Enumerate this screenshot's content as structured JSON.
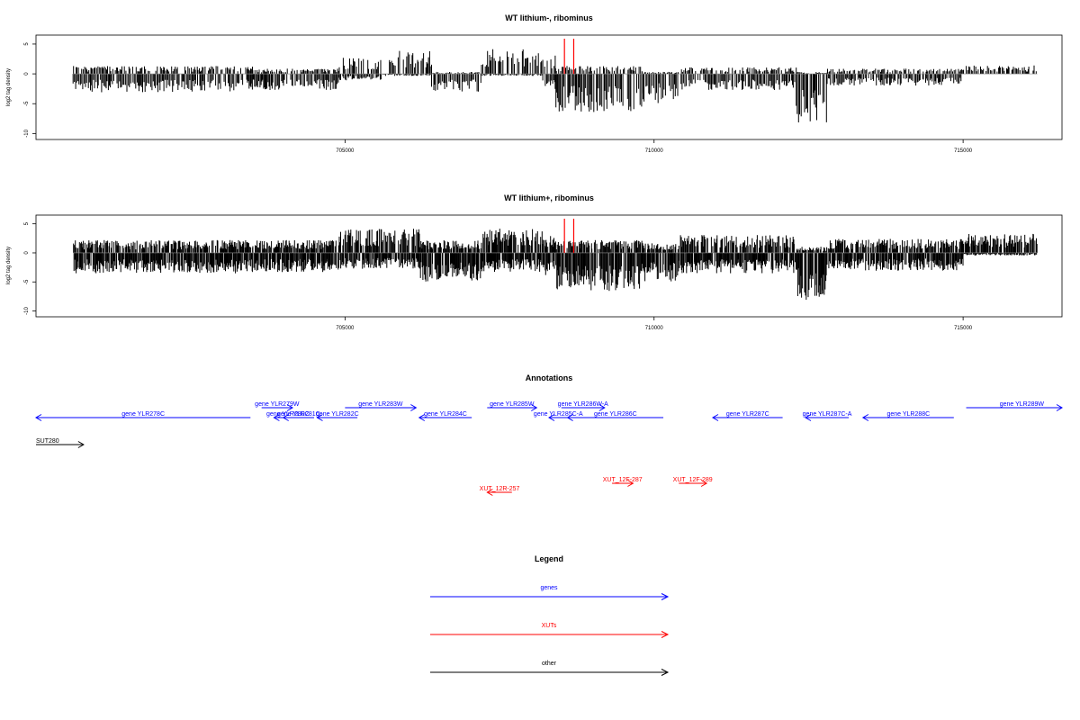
{
  "colors": {
    "genes": "#0000ff",
    "xuts": "#ff0000",
    "other": "#000000",
    "bars": "#000000",
    "markers": "#ff0000"
  },
  "chart_data": [
    {
      "type": "bar",
      "title": "WT lithium-, ribominus",
      "ylabel": "log2 tag density",
      "xlim": [
        700000,
        716600
      ],
      "ylim": [
        -11,
        6.5
      ],
      "xticks": [
        705000,
        710000,
        715000
      ],
      "yticks": [
        5,
        0,
        -5,
        -10
      ],
      "grid": false,
      "red_markers_x": [
        708550,
        708700
      ],
      "regions": [
        {
          "x": [
            700600,
            703500
          ],
          "pos": 1.2,
          "neg": -2.8
        },
        {
          "x": [
            703500,
            704900
          ],
          "pos": 0.8,
          "neg": -2.5
        },
        {
          "x": [
            704900,
            705600
          ],
          "pos": 2.5,
          "neg": -1.0
        },
        {
          "x": [
            705600,
            706400
          ],
          "pos": 3.5,
          "neg": -0.3
        },
        {
          "x": [
            706400,
            707200
          ],
          "pos": 0.3,
          "neg": -2.8
        },
        {
          "x": [
            707200,
            708200
          ],
          "pos": 3.8,
          "neg": -0.3
        },
        {
          "x": [
            708200,
            708400
          ],
          "pos": 3.0,
          "neg": -2.5
        },
        {
          "x": [
            708400,
            709800
          ],
          "pos": 1.2,
          "neg": -5.8
        },
        {
          "x": [
            709800,
            710400
          ],
          "pos": 0.3,
          "neg": -4.5
        },
        {
          "x": [
            710400,
            712300
          ],
          "pos": 1.0,
          "neg": -2.5
        },
        {
          "x": [
            712300,
            712800
          ],
          "pos": 0.3,
          "neg": -7.5
        },
        {
          "x": [
            712800,
            715000
          ],
          "pos": 0.8,
          "neg": -1.8
        },
        {
          "x": [
            715000,
            716200
          ],
          "pos": 1.3,
          "neg": -0.2
        }
      ]
    },
    {
      "type": "bar",
      "title": "WT lithium+, ribominus",
      "ylabel": "log2 tag density",
      "xlim": [
        700000,
        716600
      ],
      "ylim": [
        -11,
        6.5
      ],
      "xticks": [
        705000,
        710000,
        715000
      ],
      "yticks": [
        5,
        0,
        -5,
        -10
      ],
      "grid": false,
      "red_markers_x": [
        708550,
        708700
      ],
      "regions": [
        {
          "x": [
            700600,
            703500
          ],
          "pos": 2.0,
          "neg": -3.2
        },
        {
          "x": [
            703500,
            704900
          ],
          "pos": 2.0,
          "neg": -3.0
        },
        {
          "x": [
            704900,
            706200
          ],
          "pos": 3.8,
          "neg": -2.5
        },
        {
          "x": [
            706200,
            707200
          ],
          "pos": 2.0,
          "neg": -4.5
        },
        {
          "x": [
            707200,
            708200
          ],
          "pos": 3.8,
          "neg": -3.0
        },
        {
          "x": [
            708200,
            708400
          ],
          "pos": 3.0,
          "neg": -3.5
        },
        {
          "x": [
            708400,
            709800
          ],
          "pos": 2.0,
          "neg": -6.0
        },
        {
          "x": [
            709800,
            710400
          ],
          "pos": 1.5,
          "neg": -4.5
        },
        {
          "x": [
            710400,
            712300
          ],
          "pos": 2.8,
          "neg": -3.2
        },
        {
          "x": [
            712300,
            712800
          ],
          "pos": 1.0,
          "neg": -7.5
        },
        {
          "x": [
            712800,
            715000
          ],
          "pos": 2.2,
          "neg": -2.8
        },
        {
          "x": [
            715000,
            716200
          ],
          "pos": 3.0,
          "neg": -0.4
        }
      ]
    }
  ],
  "annotations": {
    "title": "Annotations",
    "features": [
      {
        "label": "gene YLR278C",
        "type": "gene",
        "start": 700000,
        "end": 703470,
        "strand": "-",
        "row": "lower"
      },
      {
        "label": "gene YLR279W",
        "type": "gene",
        "start": 703650,
        "end": 704150,
        "strand": "+",
        "row": "upper"
      },
      {
        "label": "gene YLR280C",
        "type": "gene",
        "start": 703850,
        "end": 704300,
        "strand": "-",
        "row": "lower"
      },
      {
        "label": "gene YLR281C",
        "type": "gene",
        "start": 704000,
        "end": 704500,
        "strand": "-",
        "row": "lower"
      },
      {
        "label": "gene YLR282C",
        "type": "gene",
        "start": 704550,
        "end": 705200,
        "strand": "-",
        "row": "lower"
      },
      {
        "label": "gene YLR283W",
        "type": "gene",
        "start": 705000,
        "end": 706150,
        "strand": "+",
        "row": "upper"
      },
      {
        "label": "gene YLR284C",
        "type": "gene",
        "start": 706200,
        "end": 707050,
        "strand": "-",
        "row": "lower"
      },
      {
        "label": "gene YLR285W",
        "type": "gene",
        "start": 707300,
        "end": 708100,
        "strand": "+",
        "row": "upper"
      },
      {
        "label": "gene YLR285C-A",
        "type": "gene",
        "start": 708300,
        "end": 708600,
        "strand": "-",
        "row": "lower"
      },
      {
        "label": "gene YLR286W-A",
        "type": "gene",
        "start": 708500,
        "end": 709200,
        "strand": "+",
        "row": "upper"
      },
      {
        "label": "gene YLR286C",
        "type": "gene",
        "start": 708600,
        "end": 710150,
        "strand": "-",
        "row": "lower"
      },
      {
        "label": "gene YLR287C",
        "type": "gene",
        "start": 710950,
        "end": 712080,
        "strand": "-",
        "row": "lower"
      },
      {
        "label": "gene YLR287C-A",
        "type": "gene",
        "start": 712450,
        "end": 713150,
        "strand": "-",
        "row": "lower"
      },
      {
        "label": "gene YLR288C",
        "type": "gene",
        "start": 713380,
        "end": 714850,
        "strand": "-",
        "row": "lower"
      },
      {
        "label": "gene YLR289W",
        "type": "gene",
        "start": 715050,
        "end": 716600,
        "strand": "+",
        "row": "upper"
      },
      {
        "label": "SUT280",
        "type": "other",
        "start": 700000,
        "end": 700770,
        "strand": "+",
        "row": "other"
      },
      {
        "label": "XUT_12R-257",
        "type": "xut",
        "start": 707300,
        "end": 707700,
        "strand": "-",
        "row": "xut-low"
      },
      {
        "label": "XUT_12F-287",
        "type": "xut",
        "start": 709320,
        "end": 709660,
        "strand": "+",
        "row": "xut-high"
      },
      {
        "label": "XUT_12F-289",
        "type": "xut",
        "start": 710400,
        "end": 710850,
        "strand": "+",
        "row": "xut-high"
      }
    ]
  },
  "legend": {
    "title": "Legend",
    "items": [
      {
        "label": "genes",
        "color": "#0000ff"
      },
      {
        "label": "XUTs",
        "color": "#ff0000"
      },
      {
        "label": "other",
        "color": "#000000"
      }
    ]
  }
}
